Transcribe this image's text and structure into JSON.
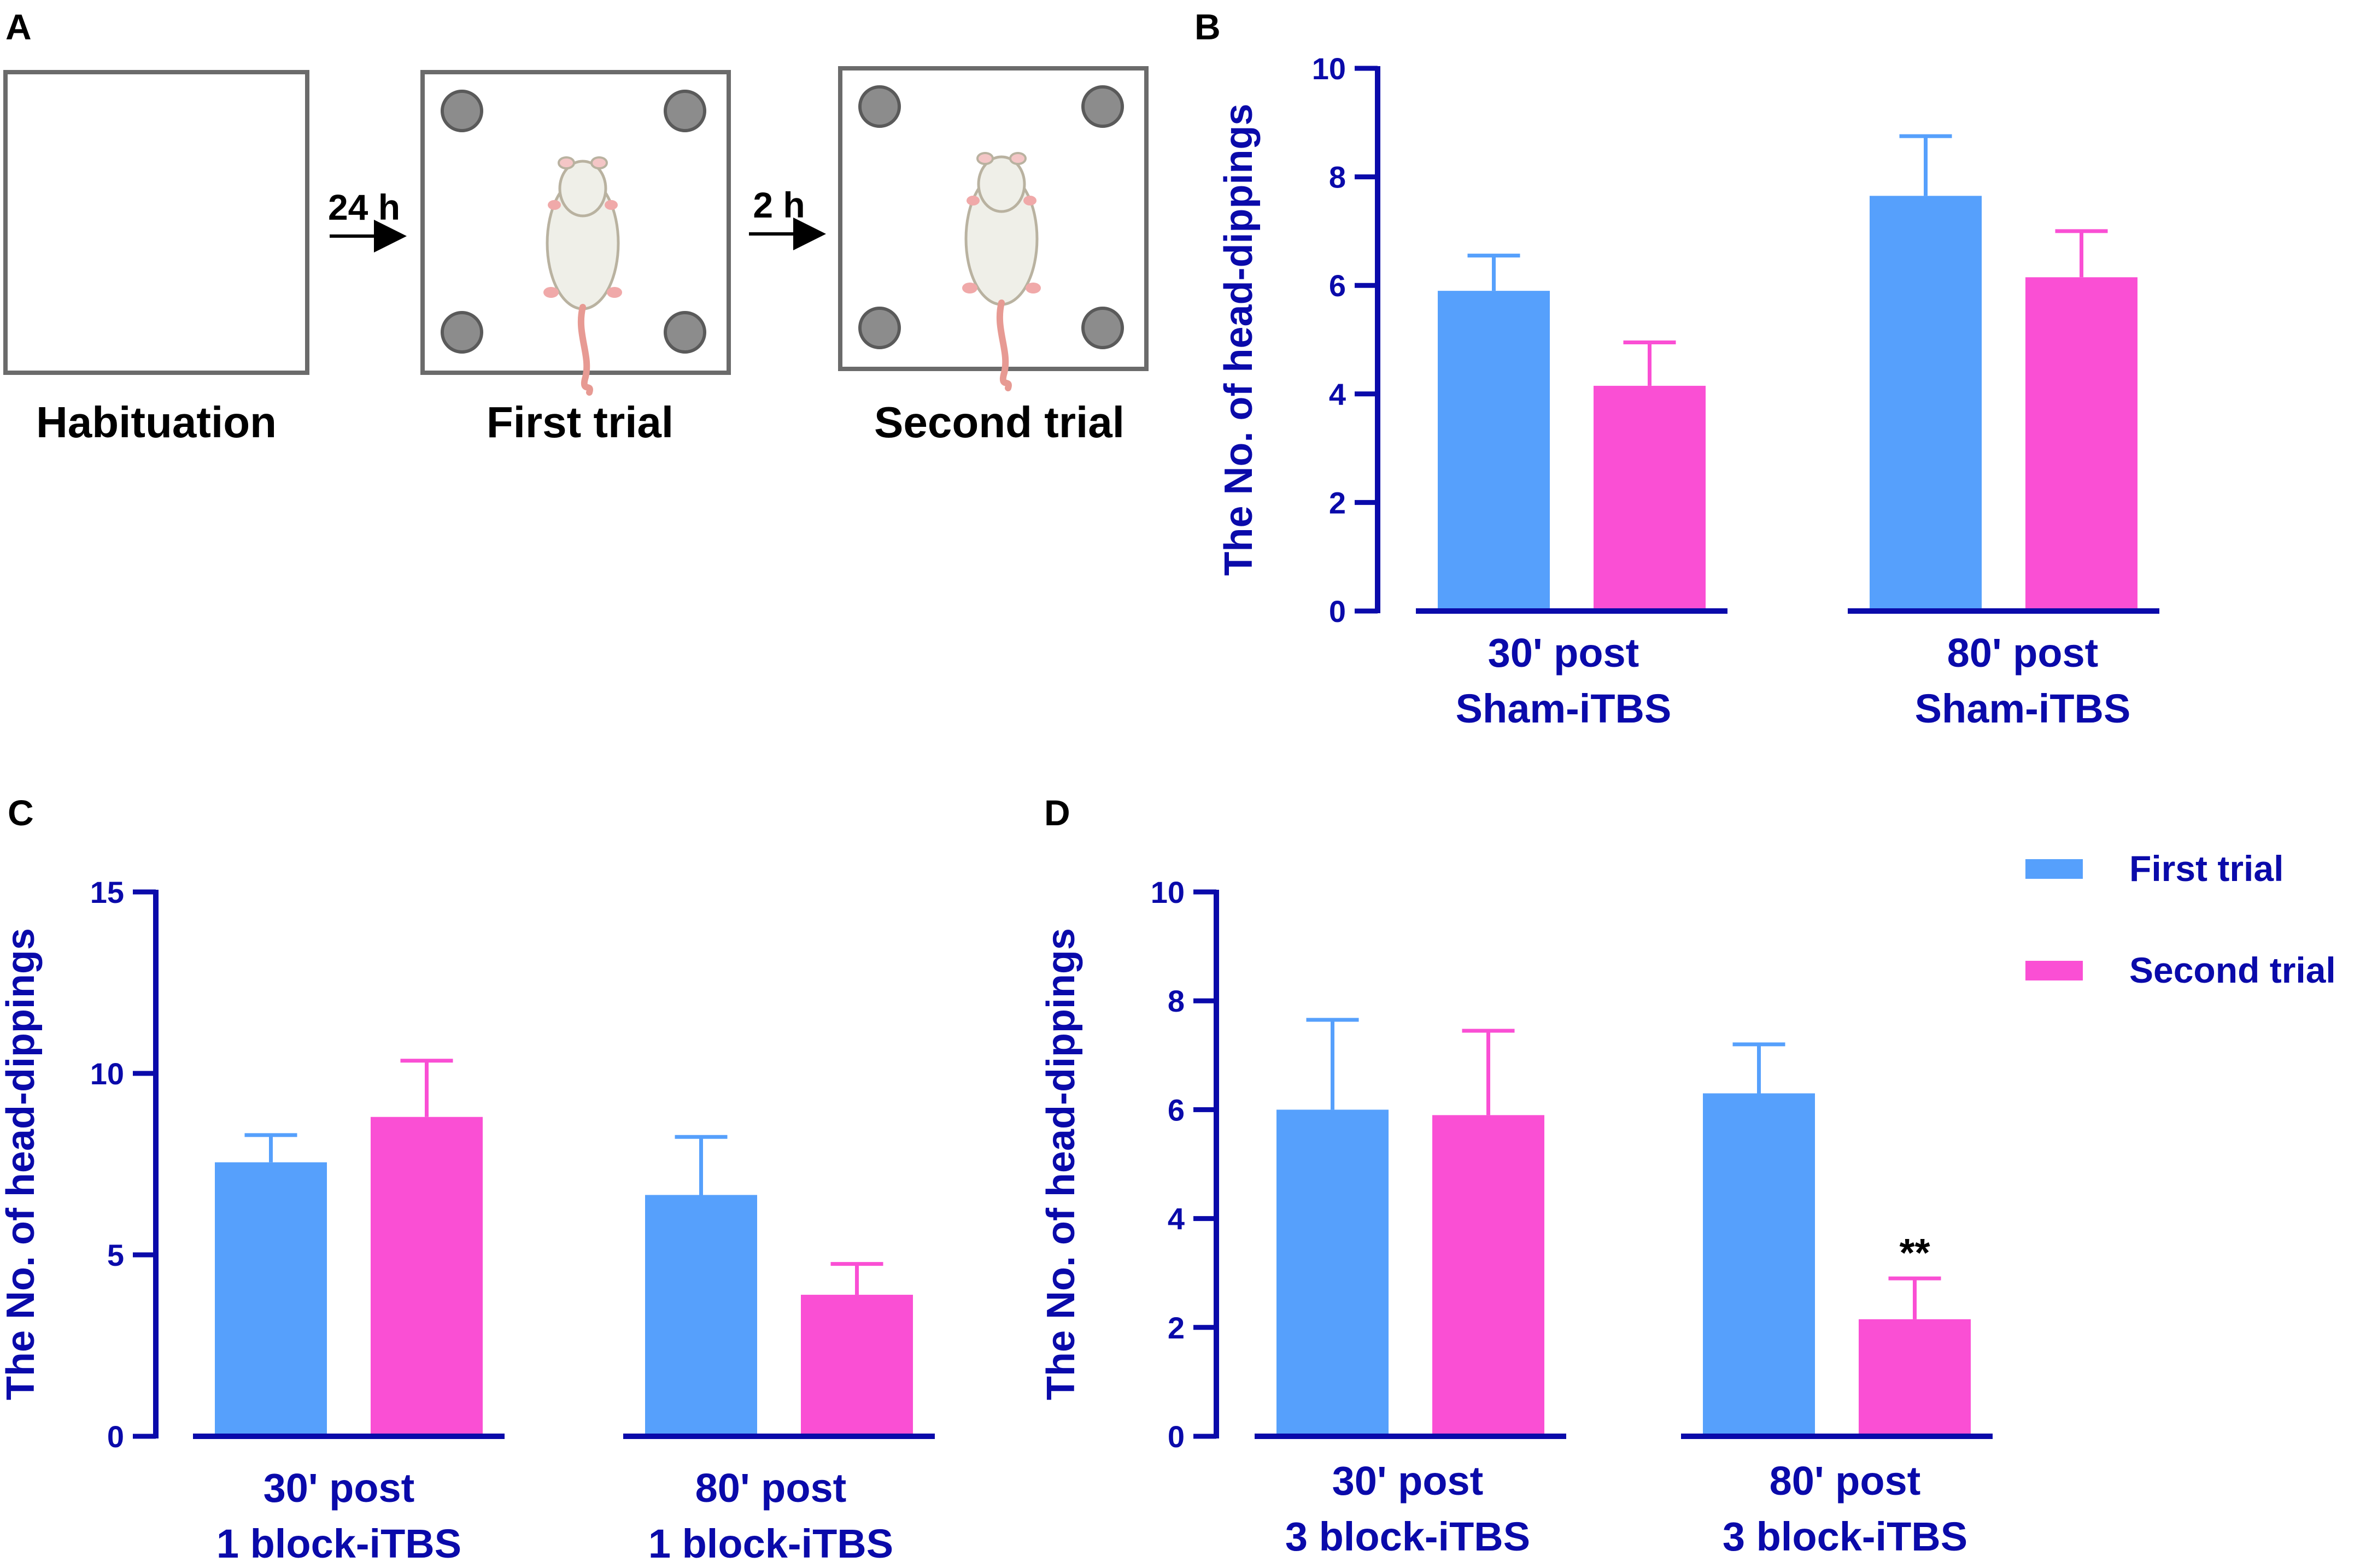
{
  "colors": {
    "axis": "#0a0aaa",
    "first_trial": "#56a0fc",
    "second_trial": "#fa4fd4",
    "box": "#6b6b6b",
    "hole": "#8c8c8c",
    "text": "#000000"
  },
  "panel_a": {
    "letter": "A",
    "stages": [
      "Habituation",
      "First trial",
      "Second trial"
    ],
    "arrows": [
      "24 h",
      "2 h"
    ],
    "icons": [
      "open-field-box",
      "rat-illustration",
      "hole"
    ]
  },
  "legend": {
    "items": [
      {
        "label": "First trial",
        "color_key": "first_trial"
      },
      {
        "label": "Second trial",
        "color_key": "second_trial"
      }
    ]
  },
  "chart_data": [
    {
      "panel": "B",
      "type": "bar",
      "ylabel": "The No. of head-dippings",
      "ylim": [
        0,
        10
      ],
      "yticks": [
        "0",
        "2",
        "4",
        "6",
        "8",
        "10"
      ],
      "categories": [
        [
          "30' post",
          "Sham-iTBS"
        ],
        [
          "80' post",
          "Sham-iTBS"
        ]
      ],
      "series": [
        {
          "name": "First trial",
          "values": [
            5.9,
            7.65
          ],
          "errors": [
            0.65,
            1.1
          ]
        },
        {
          "name": "Second trial",
          "values": [
            4.15,
            6.15
          ],
          "errors": [
            0.8,
            0.85
          ]
        }
      ],
      "annotations": []
    },
    {
      "panel": "C",
      "type": "bar",
      "ylabel": "The No. of head-dippings",
      "ylim": [
        0,
        15
      ],
      "yticks": [
        "0",
        "5",
        "10",
        "15"
      ],
      "categories": [
        [
          "30' post",
          "1 block-iTBS"
        ],
        [
          "80' post",
          "1 block-iTBS"
        ]
      ],
      "series": [
        {
          "name": "First trial",
          "values": [
            7.55,
            6.65
          ],
          "errors": [
            0.75,
            1.6
          ]
        },
        {
          "name": "Second trial",
          "values": [
            8.8,
            3.9
          ],
          "errors": [
            1.55,
            0.85
          ]
        }
      ],
      "annotations": []
    },
    {
      "panel": "D",
      "type": "bar",
      "ylabel": "The No. of head-dippings",
      "ylim": [
        0,
        10
      ],
      "yticks": [
        "0",
        "2",
        "4",
        "6",
        "8",
        "10"
      ],
      "categories": [
        [
          "30' post",
          "3 block-iTBS"
        ],
        [
          "80' post",
          "3 block-iTBS"
        ]
      ],
      "series": [
        {
          "name": "First trial",
          "values": [
            6.0,
            6.3
          ],
          "errors": [
            1.65,
            0.9
          ]
        },
        {
          "name": "Second trial",
          "values": [
            5.9,
            2.15
          ],
          "errors": [
            1.55,
            0.75
          ]
        }
      ],
      "annotations": [
        {
          "text": "**",
          "category_index": 1,
          "series_index": 1
        }
      ]
    }
  ]
}
